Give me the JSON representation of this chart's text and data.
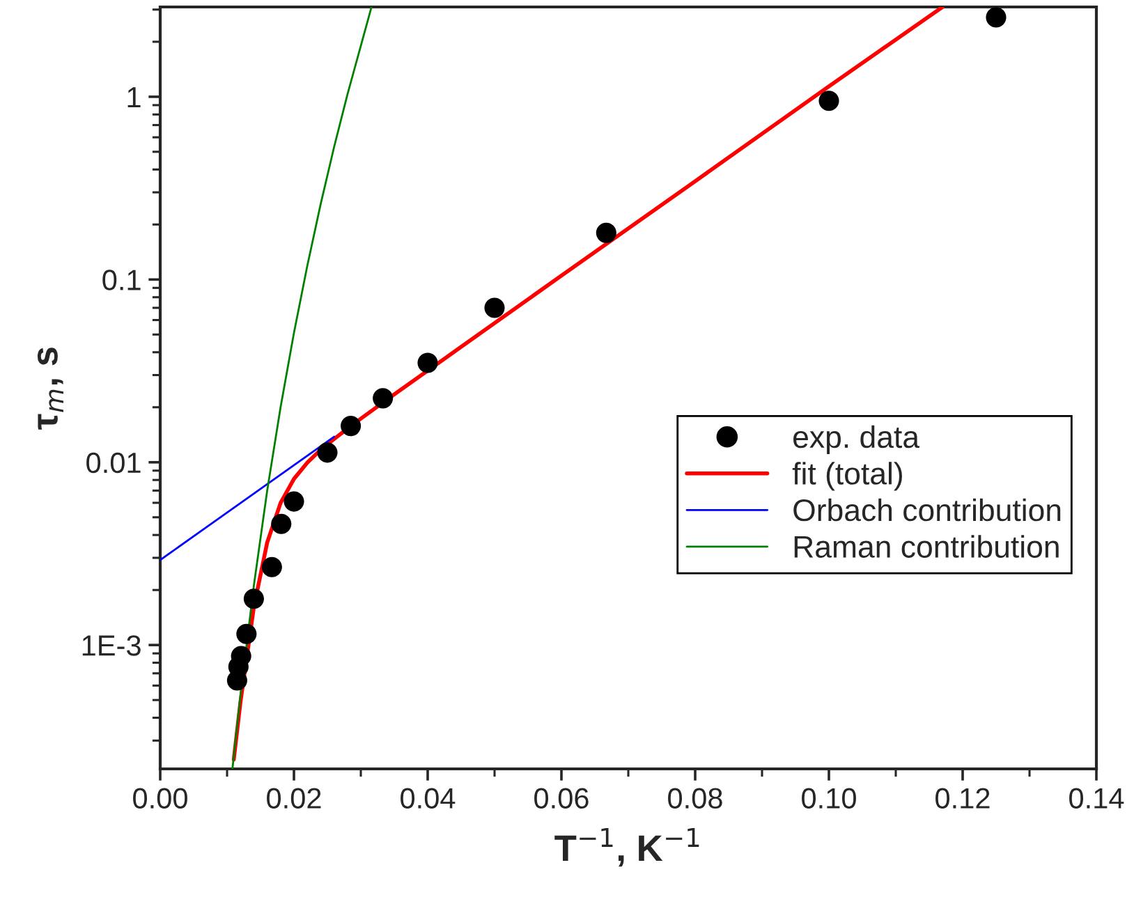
{
  "chart_data": {
    "type": "scatter",
    "xlabel": "T$^{−1}$, K$^{−1}$",
    "ylabel": "τ$_{m}$, s",
    "log": "y",
    "grid": false,
    "legend": "right",
    "xlim": [
      0,
      0.14
    ],
    "xticks": [
      {
        "value": 0,
        "label": "0.00"
      },
      {
        "value": 0.02,
        "label": "0.02"
      },
      {
        "value": 0.04,
        "label": "0.04"
      },
      {
        "value": 0.06,
        "label": "0.06"
      },
      {
        "value": 0.08,
        "label": "0.08"
      },
      {
        "value": 0.1,
        "label": "0.10"
      },
      {
        "value": 0.12,
        "label": "0.12"
      },
      {
        "value": 0.14,
        "label": "0.14"
      }
    ],
    "ylim": [
      0.00021,
      3.1
    ],
    "yticks": [
      {
        "value": 0.001,
        "label": "1E-3"
      },
      0.01,
      0.1,
      1
    ],
    "series": [
      {
        "name": "exp. data",
        "marker": "circle",
        "color": "#000000",
        "x": [
          0.125,
          0.1,
          0.0667,
          0.05,
          0.04,
          0.0333,
          0.0285,
          0.025,
          0.02,
          0.0181,
          0.0167,
          0.014,
          0.0129,
          0.0121,
          0.0117,
          0.0115
        ],
        "values": [
          2.72,
          0.95,
          0.18,
          0.07,
          0.035,
          0.0224,
          0.0158,
          0.0113,
          0.0061,
          0.0046,
          0.00267,
          0.00179,
          0.00115,
          0.00087,
          0.00076,
          0.00064
        ]
      },
      {
        "name": "fit (total)",
        "type": "line",
        "marker": "none",
        "line_style": "solid",
        "color": "#ff0000",
        "x": [
          0.011,
          0.012,
          0.014,
          0.016,
          0.018,
          0.02,
          0.022,
          0.024,
          0.026,
          0.028,
          0.03,
          0.035,
          0.045,
          0.06,
          0.08,
          0.1,
          0.117
        ],
        "values": [
          0.000236,
          0.000487,
          0.00161,
          0.00364,
          0.00599,
          0.00811,
          0.00995,
          0.0117,
          0.0134,
          0.01527,
          0.01732,
          0.0235,
          0.0428,
          0.105,
          0.345,
          1.14,
          3.1
        ]
      },
      {
        "name": "Orbach contribution",
        "type": "line",
        "marker": "none",
        "line_style": "solid",
        "color": "#0000ff",
        "x": [
          0,
          0.026
        ],
        "values": [
          0.00292,
          0.0138
        ]
      },
      {
        "name": "Raman contribution",
        "type": "line",
        "marker": "none",
        "line_style": "solid",
        "color": "#008000",
        "x": [
          0.0108,
          0.012,
          0.014,
          0.016,
          0.018,
          0.02,
          0.022,
          0.024,
          0.026,
          0.028,
          0.03,
          0.0316
        ],
        "values": [
          0.00021,
          0.00053,
          0.00211,
          0.007,
          0.02,
          0.051,
          0.119,
          0.259,
          0.53,
          1.03,
          1.9,
          3.1
        ]
      }
    ]
  }
}
